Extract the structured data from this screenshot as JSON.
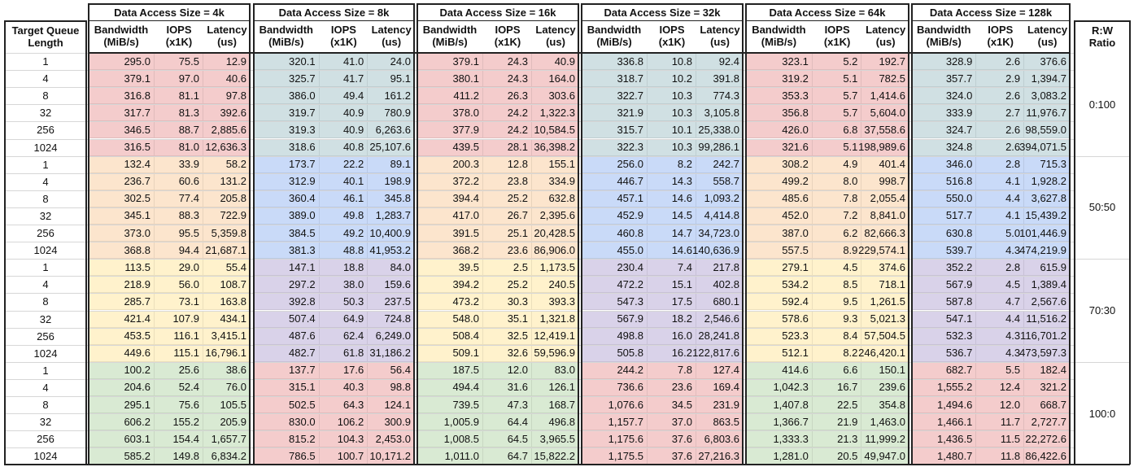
{
  "table": {
    "target_queue_label": "Target Queue\nLength",
    "ratio_label": "R:W\nRatio",
    "sub_headers": [
      "Bandwidth\n(MiB/s)",
      "IOPS\n(x1K)",
      "Latency\n(us)"
    ],
    "queue_lengths": [
      "1",
      "4",
      "8",
      "32",
      "256",
      "1024"
    ],
    "groups": [
      {
        "title": "Data Access Size = 4k"
      },
      {
        "title": "Data Access Size = 8k"
      },
      {
        "title": "Data Access Size = 16k"
      },
      {
        "title": "Data Access Size = 32k"
      },
      {
        "title": "Data Access Size = 64k"
      },
      {
        "title": "Data Access Size = 128k"
      }
    ],
    "ratios": [
      "0:100",
      "50:50",
      "70:30",
      "100:0"
    ],
    "colors": {
      "pink": "#f4cccc",
      "teal": "#d0e0e3",
      "orange": "#fce5cd",
      "blue": "#c9daf8",
      "yellow": "#fff2cc",
      "purple": "#d9d2e9",
      "green": "#d9ead3"
    },
    "block_colors": [
      [
        "pink",
        "teal",
        "pink",
        "teal",
        "pink",
        "teal"
      ],
      [
        "orange",
        "blue",
        "orange",
        "blue",
        "orange",
        "blue"
      ],
      [
        "yellow",
        "purple",
        "yellow",
        "purple",
        "yellow",
        "purple"
      ],
      [
        "green",
        "pink",
        "green",
        "pink",
        "green",
        "pink"
      ]
    ],
    "rows": [
      [
        [
          "295.0",
          "75.5",
          "12.9"
        ],
        [
          "320.1",
          "41.0",
          "24.0"
        ],
        [
          "379.1",
          "24.3",
          "40.9"
        ],
        [
          "336.8",
          "10.8",
          "92.4"
        ],
        [
          "323.1",
          "5.2",
          "192.7"
        ],
        [
          "328.9",
          "2.6",
          "376.6"
        ]
      ],
      [
        [
          "379.1",
          "97.0",
          "40.6"
        ],
        [
          "325.7",
          "41.7",
          "95.1"
        ],
        [
          "380.1",
          "24.3",
          "164.0"
        ],
        [
          "318.7",
          "10.2",
          "391.8"
        ],
        [
          "319.2",
          "5.1",
          "782.5"
        ],
        [
          "357.7",
          "2.9",
          "1,394.7"
        ]
      ],
      [
        [
          "316.8",
          "81.1",
          "97.8"
        ],
        [
          "386.0",
          "49.4",
          "161.2"
        ],
        [
          "411.2",
          "26.3",
          "303.6"
        ],
        [
          "322.7",
          "10.3",
          "774.3"
        ],
        [
          "353.3",
          "5.7",
          "1,414.6"
        ],
        [
          "324.0",
          "2.6",
          "3,083.2"
        ]
      ],
      [
        [
          "317.7",
          "81.3",
          "392.6"
        ],
        [
          "319.7",
          "40.9",
          "780.9"
        ],
        [
          "378.0",
          "24.2",
          "1,322.3"
        ],
        [
          "321.9",
          "10.3",
          "3,105.8"
        ],
        [
          "356.8",
          "5.7",
          "5,604.0"
        ],
        [
          "333.9",
          "2.7",
          "11,976.7"
        ]
      ],
      [
        [
          "346.5",
          "88.7",
          "2,885.6"
        ],
        [
          "319.3",
          "40.9",
          "6,263.6"
        ],
        [
          "377.9",
          "24.2",
          "10,584.5"
        ],
        [
          "315.7",
          "10.1",
          "25,338.0"
        ],
        [
          "426.0",
          "6.8",
          "37,558.6"
        ],
        [
          "324.7",
          "2.6",
          "98,559.0"
        ]
      ],
      [
        [
          "316.5",
          "81.0",
          "12,636.3"
        ],
        [
          "318.6",
          "40.8",
          "25,107.6"
        ],
        [
          "439.5",
          "28.1",
          "36,398.2"
        ],
        [
          "322.3",
          "10.3",
          "99,286.1"
        ],
        [
          "321.6",
          "5.1",
          "198,989.6"
        ],
        [
          "324.8",
          "2.6",
          "394,071.5"
        ]
      ],
      [
        [
          "132.4",
          "33.9",
          "58.2"
        ],
        [
          "173.7",
          "22.2",
          "89.1"
        ],
        [
          "200.3",
          "12.8",
          "155.1"
        ],
        [
          "256.0",
          "8.2",
          "242.7"
        ],
        [
          "308.2",
          "4.9",
          "401.4"
        ],
        [
          "346.0",
          "2.8",
          "715.3"
        ]
      ],
      [
        [
          "236.7",
          "60.6",
          "131.2"
        ],
        [
          "312.9",
          "40.1",
          "198.9"
        ],
        [
          "372.2",
          "23.8",
          "334.9"
        ],
        [
          "446.7",
          "14.3",
          "558.7"
        ],
        [
          "499.2",
          "8.0",
          "998.7"
        ],
        [
          "516.8",
          "4.1",
          "1,928.2"
        ]
      ],
      [
        [
          "302.5",
          "77.4",
          "205.8"
        ],
        [
          "360.4",
          "46.1",
          "345.8"
        ],
        [
          "394.4",
          "25.2",
          "632.8"
        ],
        [
          "457.1",
          "14.6",
          "1,093.2"
        ],
        [
          "485.6",
          "7.8",
          "2,055.4"
        ],
        [
          "550.0",
          "4.4",
          "3,627.8"
        ]
      ],
      [
        [
          "345.1",
          "88.3",
          "722.9"
        ],
        [
          "389.0",
          "49.8",
          "1,283.7"
        ],
        [
          "417.0",
          "26.7",
          "2,395.6"
        ],
        [
          "452.9",
          "14.5",
          "4,414.8"
        ],
        [
          "452.0",
          "7.2",
          "8,841.0"
        ],
        [
          "517.7",
          "4.1",
          "15,439.2"
        ]
      ],
      [
        [
          "373.0",
          "95.5",
          "5,359.8"
        ],
        [
          "384.5",
          "49.2",
          "10,400.9"
        ],
        [
          "391.5",
          "25.1",
          "20,428.5"
        ],
        [
          "460.8",
          "14.7",
          "34,723.0"
        ],
        [
          "387.0",
          "6.2",
          "82,666.3"
        ],
        [
          "630.8",
          "5.0",
          "101,446.9"
        ]
      ],
      [
        [
          "368.8",
          "94.4",
          "21,687.1"
        ],
        [
          "381.3",
          "48.8",
          "41,953.2"
        ],
        [
          "368.2",
          "23.6",
          "86,906.0"
        ],
        [
          "455.0",
          "14.6",
          "140,636.9"
        ],
        [
          "557.5",
          "8.9",
          "229,574.1"
        ],
        [
          "539.7",
          "4.3",
          "474,219.9"
        ]
      ],
      [
        [
          "113.5",
          "29.0",
          "55.4"
        ],
        [
          "147.1",
          "18.8",
          "84.0"
        ],
        [
          "39.5",
          "2.5",
          "1,173.5"
        ],
        [
          "230.4",
          "7.4",
          "217.8"
        ],
        [
          "279.1",
          "4.5",
          "374.6"
        ],
        [
          "352.2",
          "2.8",
          "615.9"
        ]
      ],
      [
        [
          "218.9",
          "56.0",
          "108.7"
        ],
        [
          "297.2",
          "38.0",
          "159.6"
        ],
        [
          "394.2",
          "25.2",
          "240.5"
        ],
        [
          "472.2",
          "15.1",
          "402.8"
        ],
        [
          "534.2",
          "8.5",
          "718.1"
        ],
        [
          "567.9",
          "4.5",
          "1,389.4"
        ]
      ],
      [
        [
          "285.7",
          "73.1",
          "163.8"
        ],
        [
          "392.8",
          "50.3",
          "237.5"
        ],
        [
          "473.2",
          "30.3",
          "393.3"
        ],
        [
          "547.3",
          "17.5",
          "680.1"
        ],
        [
          "592.4",
          "9.5",
          "1,261.5"
        ],
        [
          "587.8",
          "4.7",
          "2,567.6"
        ]
      ],
      [
        [
          "421.4",
          "107.9",
          "434.1"
        ],
        [
          "507.4",
          "64.9",
          "724.8"
        ],
        [
          "548.0",
          "35.1",
          "1,321.8"
        ],
        [
          "567.9",
          "18.2",
          "2,546.6"
        ],
        [
          "578.6",
          "9.3",
          "5,021.3"
        ],
        [
          "547.1",
          "4.4",
          "11,516.2"
        ]
      ],
      [
        [
          "453.5",
          "116.1",
          "3,415.1"
        ],
        [
          "487.6",
          "62.4",
          "6,249.0"
        ],
        [
          "508.4",
          "32.5",
          "12,419.1"
        ],
        [
          "498.8",
          "16.0",
          "28,241.8"
        ],
        [
          "523.3",
          "8.4",
          "57,504.5"
        ],
        [
          "532.3",
          "4.3",
          "116,701.2"
        ]
      ],
      [
        [
          "449.6",
          "115.1",
          "16,796.1"
        ],
        [
          "482.7",
          "61.8",
          "31,186.2"
        ],
        [
          "509.1",
          "32.6",
          "59,596.9"
        ],
        [
          "505.8",
          "16.2",
          "122,817.6"
        ],
        [
          "512.1",
          "8.2",
          "246,420.1"
        ],
        [
          "536.7",
          "4.3",
          "473,597.3"
        ]
      ],
      [
        [
          "100.2",
          "25.6",
          "38.6"
        ],
        [
          "137.7",
          "17.6",
          "56.4"
        ],
        [
          "187.5",
          "12.0",
          "83.0"
        ],
        [
          "244.2",
          "7.8",
          "127.4"
        ],
        [
          "414.6",
          "6.6",
          "150.1"
        ],
        [
          "682.7",
          "5.5",
          "182.4"
        ]
      ],
      [
        [
          "204.6",
          "52.4",
          "76.0"
        ],
        [
          "315.1",
          "40.3",
          "98.8"
        ],
        [
          "494.4",
          "31.6",
          "126.1"
        ],
        [
          "736.6",
          "23.6",
          "169.4"
        ],
        [
          "1,042.3",
          "16.7",
          "239.6"
        ],
        [
          "1,555.2",
          "12.4",
          "321.2"
        ]
      ],
      [
        [
          "295.1",
          "75.6",
          "105.5"
        ],
        [
          "502.5",
          "64.3",
          "124.1"
        ],
        [
          "739.5",
          "47.3",
          "168.7"
        ],
        [
          "1,076.6",
          "34.5",
          "231.9"
        ],
        [
          "1,407.8",
          "22.5",
          "354.8"
        ],
        [
          "1,494.6",
          "12.0",
          "668.7"
        ]
      ],
      [
        [
          "606.2",
          "155.2",
          "205.9"
        ],
        [
          "830.0",
          "106.2",
          "300.9"
        ],
        [
          "1,005.9",
          "64.4",
          "496.8"
        ],
        [
          "1,157.7",
          "37.0",
          "863.5"
        ],
        [
          "1,366.7",
          "21.9",
          "1,463.0"
        ],
        [
          "1,466.1",
          "11.7",
          "2,727.7"
        ]
      ],
      [
        [
          "603.1",
          "154.4",
          "1,657.7"
        ],
        [
          "815.2",
          "104.3",
          "2,453.0"
        ],
        [
          "1,008.5",
          "64.5",
          "3,965.5"
        ],
        [
          "1,175.6",
          "37.6",
          "6,803.6"
        ],
        [
          "1,333.3",
          "21.3",
          "11,999.2"
        ],
        [
          "1,436.5",
          "11.5",
          "22,272.6"
        ]
      ],
      [
        [
          "585.2",
          "149.8",
          "6,834.2"
        ],
        [
          "786.5",
          "100.7",
          "10,171.2"
        ],
        [
          "1,011.0",
          "64.7",
          "15,822.2"
        ],
        [
          "1,175.5",
          "37.6",
          "27,216.3"
        ],
        [
          "1,281.0",
          "20.5",
          "49,947.0"
        ],
        [
          "1,480.7",
          "11.8",
          "86,422.6"
        ]
      ]
    ]
  }
}
